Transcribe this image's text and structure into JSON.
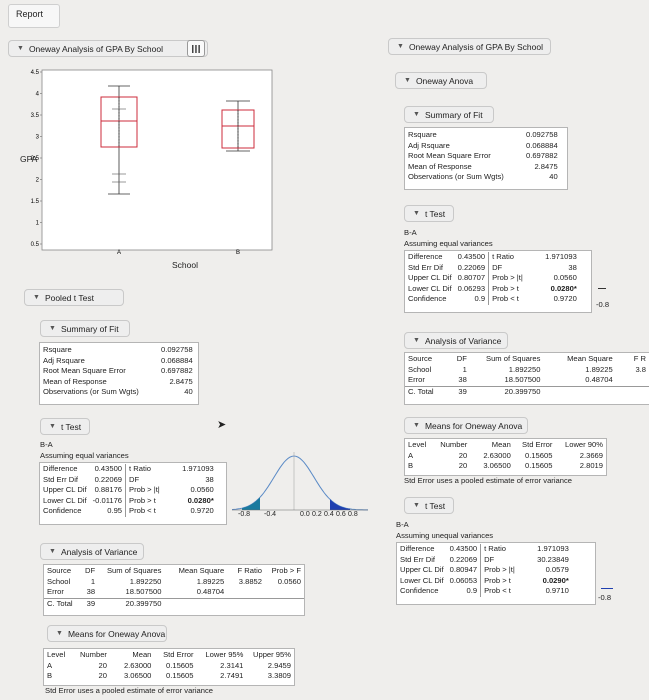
{
  "report_title": "Report",
  "left": {
    "header": "Oneway Analysis of GPA By School",
    "chart_data": {
      "type": "box",
      "ylabel": "GPA",
      "xlabel": "School",
      "categories": [
        "A",
        "B"
      ],
      "yticks": [
        "4.5",
        "4",
        "3.5",
        "3",
        "2.5",
        "2",
        "1.5",
        "1",
        "0.5"
      ],
      "ylim": [
        0.5,
        4.5
      ]
    },
    "pooled_t_test": "Pooled t Test",
    "summary_of_fit": {
      "title": "Summary of Fit",
      "rows": [
        {
          "label": "Rsquare",
          "value": "0.092758"
        },
        {
          "label": "Adj Rsquare",
          "value": "0.068884"
        },
        {
          "label": "Root Mean Square Error",
          "value": "0.697882"
        },
        {
          "label": "Mean of Response",
          "value": "2.8475"
        },
        {
          "label": "Observations (or Sum Wgts)",
          "value": "40"
        }
      ]
    },
    "t_test": {
      "title": "t Test",
      "comparison": "B-A",
      "assumption": "Assuming equal variances",
      "difference": {
        "label": "Difference",
        "value": "0.43500"
      },
      "std_err": {
        "label": "Std Err Dif",
        "value": "0.22069"
      },
      "upper_cl": {
        "label": "Upper CL Dif",
        "value": "0.88176"
      },
      "lower_cl": {
        "label": "Lower CL Dif",
        "value": "-0.01176"
      },
      "confidence": {
        "label": "Confidence",
        "value": "0.95"
      },
      "t_ratio": {
        "label": "t Ratio",
        "value": "1.971093"
      },
      "df": {
        "label": "DF",
        "value": "38"
      },
      "p_two": {
        "label": "Prob > |t|",
        "value": "0.0560"
      },
      "p_gt": {
        "label": "Prob > t",
        "value": "0.0280*"
      },
      "p_lt": {
        "label": "Prob < t",
        "value": "0.9720"
      },
      "axis_ticks": [
        "-0.8",
        "-0.4",
        "0.0",
        "0.2",
        "0.4",
        "0.6",
        "0.8"
      ]
    },
    "anova": {
      "title": "Analysis of Variance",
      "headers": [
        "Source",
        "DF",
        "Sum of Squares",
        "Mean Square",
        "F Ratio",
        "Prob > F"
      ],
      "rows": [
        [
          "School",
          "1",
          "1.892250",
          "1.89225",
          "3.8852",
          "0.0560"
        ],
        [
          "Error",
          "38",
          "18.507500",
          "0.48704",
          "",
          ""
        ],
        [
          "C. Total",
          "39",
          "20.399750",
          "",
          "",
          ""
        ]
      ]
    },
    "means": {
      "title": "Means for Oneway Anova",
      "headers": [
        "Level",
        "Number",
        "Mean",
        "Std Error",
        "Lower 95%",
        "Upper 95%"
      ],
      "rows": [
        [
          "A",
          "20",
          "2.63000",
          "0.15605",
          "2.3141",
          "2.9459"
        ],
        [
          "B",
          "20",
          "3.06500",
          "0.15605",
          "2.7491",
          "3.3809"
        ]
      ],
      "note": "Std Error uses a pooled estimate of error variance"
    }
  },
  "right": {
    "header": "Oneway Analysis of GPA By School",
    "oneway_anova": "Oneway Anova",
    "summary_of_fit": {
      "title": "Summary of Fit",
      "rows": [
        {
          "label": "Rsquare",
          "value": "0.092758"
        },
        {
          "label": "Adj Rsquare",
          "value": "0.068884"
        },
        {
          "label": "Root Mean Square Error",
          "value": "0.697882"
        },
        {
          "label": "Mean of Response",
          "value": "2.8475"
        },
        {
          "label": "Observations (or Sum Wgts)",
          "value": "40"
        }
      ]
    },
    "t_test": {
      "title": "t Test",
      "comparison": "B-A",
      "assumption": "Assuming equal variances",
      "difference": {
        "label": "Difference",
        "value": "0.43500"
      },
      "std_err": {
        "label": "Std Err Dif",
        "value": "0.22069"
      },
      "upper_cl": {
        "label": "Upper CL Dif",
        "value": "0.80707"
      },
      "lower_cl": {
        "label": "Lower CL Dif",
        "value": "0.06293"
      },
      "confidence": {
        "label": "Confidence",
        "value": "0.9"
      },
      "t_ratio": {
        "label": "t Ratio",
        "value": "1.971093"
      },
      "df": {
        "label": "DF",
        "value": "38"
      },
      "p_two": {
        "label": "Prob > |t|",
        "value": "0.0560"
      },
      "p_gt": {
        "label": "Prob > t",
        "value": "0.0280*"
      },
      "p_lt": {
        "label": "Prob < t",
        "value": "0.9720"
      },
      "axis_tick": "-0.8"
    },
    "anova": {
      "title": "Analysis of Variance",
      "headers": [
        "Source",
        "DF",
        "Sum of Squares",
        "Mean Square",
        "F R"
      ],
      "rows": [
        [
          "School",
          "1",
          "1.892250",
          "1.89225",
          "3.8"
        ],
        [
          "Error",
          "38",
          "18.507500",
          "0.48704",
          ""
        ],
        [
          "C. Total",
          "39",
          "20.399750",
          "",
          ""
        ]
      ]
    },
    "means": {
      "title": "Means for Oneway Anova",
      "headers": [
        "Level",
        "Number",
        "Mean",
        "Std Error",
        "Lower 90%"
      ],
      "rows": [
        [
          "A",
          "20",
          "2.63000",
          "0.15605",
          "2.3669"
        ],
        [
          "B",
          "20",
          "3.06500",
          "0.15605",
          "2.8019"
        ]
      ],
      "note": "Std Error uses a pooled estimate of error variance"
    },
    "t_test_unequal": {
      "title": "t Test",
      "comparison": "B-A",
      "assumption": "Assuming unequal variances",
      "difference": {
        "label": "Difference",
        "value": "0.43500"
      },
      "std_err": {
        "label": "Std Err Dif",
        "value": "0.22069"
      },
      "upper_cl": {
        "label": "Upper CL Dif",
        "value": "0.80947"
      },
      "lower_cl": {
        "label": "Lower CL Dif",
        "value": "0.06053"
      },
      "confidence": {
        "label": "Confidence",
        "value": "0.9"
      },
      "t_ratio": {
        "label": "t Ratio",
        "value": "1.971093"
      },
      "df": {
        "label": "DF",
        "value": "30.23849"
      },
      "p_two": {
        "label": "Prob > |t|",
        "value": "0.0579"
      },
      "p_gt": {
        "label": "Prob > t",
        "value": "0.0290*"
      },
      "p_lt": {
        "label": "Prob < t",
        "value": "0.9710"
      },
      "axis_tick": "-0.8"
    }
  }
}
